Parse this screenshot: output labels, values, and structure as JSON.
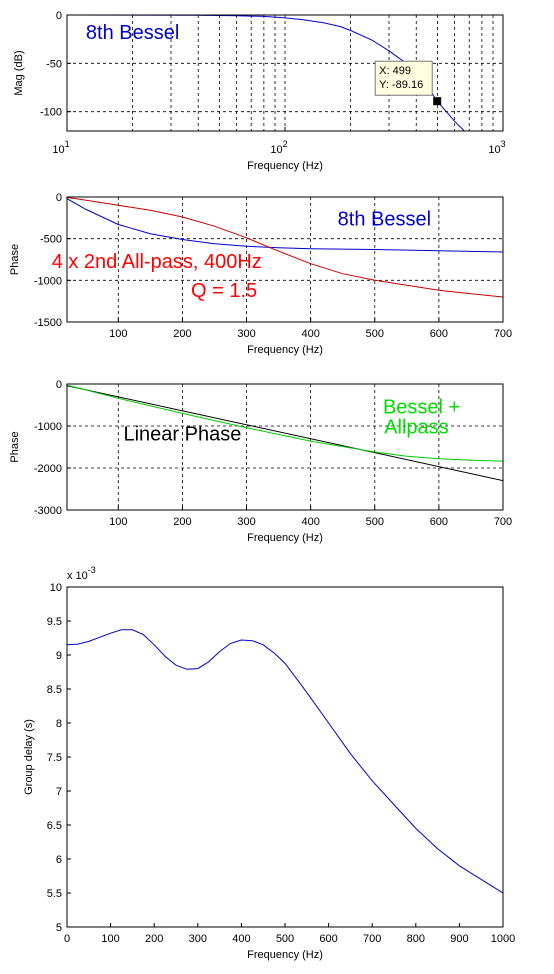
{
  "chart_data": [
    {
      "type": "line",
      "xscale": "log",
      "xlim": [
        10,
        1000
      ],
      "ylim": [
        -120,
        0
      ],
      "xlabel": "Frequency (Hz)",
      "ylabel": "Mag (dB)",
      "x_ticks": [
        10,
        100,
        1000
      ],
      "x_ticks_text": [
        {
          "base": "10",
          "exp": "1"
        },
        {
          "base": "10",
          "exp": "2"
        },
        {
          "base": "10",
          "exp": "3"
        }
      ],
      "y_ticks": [
        0,
        -50,
        -100
      ],
      "y_tick_labels": [
        "0",
        "-50",
        "-100"
      ],
      "grid": true,
      "series": [
        {
          "color": "#0000cc",
          "x": [
            10,
            20,
            40,
            60,
            80,
            100,
            120,
            150,
            180,
            200,
            250,
            300,
            350,
            400,
            450,
            499,
            550,
            600,
            700,
            800,
            1000
          ],
          "y": [
            0,
            -0.1,
            -0.3,
            -0.8,
            -1.5,
            -3,
            -4.8,
            -8,
            -12,
            -16,
            -26,
            -37,
            -48,
            -60,
            -74,
            -89.16,
            -100,
            -110,
            -125,
            -135,
            -150
          ]
        }
      ],
      "annotations": [
        {
          "text": "8th Bessel",
          "color": "#0000cc",
          "x": 20,
          "y": -25
        }
      ],
      "datatip": {
        "x": 499,
        "y": -89.16,
        "line1": "X: 499",
        "line2": "Y: -89.16"
      }
    },
    {
      "type": "line",
      "xlim": [
        20,
        700
      ],
      "ylim": [
        -1500,
        0
      ],
      "xlabel": "Frequency (Hz)",
      "ylabel": "Phase",
      "x_ticks": [
        100,
        200,
        300,
        400,
        500,
        600,
        700
      ],
      "y_ticks": [
        0,
        -500,
        -1000,
        -1500
      ],
      "y_tick_labels": [
        "0",
        "-500",
        "-1000",
        "-1500"
      ],
      "grid": true,
      "series": [
        {
          "name": "8th Bessel",
          "color": "#0000cc",
          "x": [
            20,
            50,
            100,
            150,
            200,
            250,
            300,
            350,
            400,
            500,
            600,
            700
          ],
          "y": [
            -20,
            -150,
            -330,
            -440,
            -510,
            -560,
            -590,
            -610,
            -620,
            -630,
            -645,
            -660
          ]
        },
        {
          "color": "#cc0000",
          "x": [
            20,
            50,
            100,
            150,
            200,
            250,
            300,
            350,
            400,
            450,
            500,
            550,
            600,
            650,
            700
          ],
          "y": [
            -5,
            -40,
            -100,
            -160,
            -240,
            -350,
            -490,
            -650,
            -800,
            -920,
            -1000,
            -1060,
            -1120,
            -1160,
            -1200
          ]
        }
      ],
      "annotations": [
        {
          "text": "8th Bessel",
          "color": "#0000cc",
          "x": 515,
          "y": -340
        },
        {
          "text": "4 x 2nd All-pass, 400Hz",
          "color": "#ff0000",
          "x": 160,
          "y": -850
        },
        {
          "text": "Q = 1.5",
          "color": "#ff0000",
          "x": 265,
          "y": -1200
        }
      ]
    },
    {
      "type": "line",
      "xlim": [
        20,
        700
      ],
      "ylim": [
        -3000,
        0
      ],
      "xlabel": "Frequency (Hz)",
      "ylabel": "Phase",
      "x_ticks": [
        100,
        200,
        300,
        400,
        500,
        600,
        700
      ],
      "y_ticks": [
        0,
        -1000,
        -2000,
        -3000
      ],
      "y_tick_labels": [
        "0",
        "-1000",
        "-2000",
        "-3000"
      ],
      "grid": true,
      "series": [
        {
          "name": "Linear Phase",
          "color": "#000000",
          "x": [
            20,
            700
          ],
          "y": [
            -40,
            -2300
          ]
        },
        {
          "name": "Bessel + Allpass",
          "color": "#00cc00",
          "x": [
            20,
            100,
            200,
            300,
            400,
            500,
            550,
            600,
            650,
            700
          ],
          "y": [
            -25,
            -340,
            -700,
            -1040,
            -1360,
            -1620,
            -1720,
            -1780,
            -1815,
            -1835
          ]
        }
      ],
      "annotations": [
        {
          "text": "Linear Phase",
          "color": "#000000",
          "x": 200,
          "y": -1350
        },
        {
          "text": "Bessel +",
          "color": "#00dd00",
          "x": 573,
          "y": -700
        },
        {
          "text": "Allpass",
          "color": "#00dd00",
          "x": 565,
          "y": -1180
        }
      ]
    },
    {
      "type": "line",
      "xlim": [
        0,
        1000
      ],
      "ylim": [
        5,
        10
      ],
      "xlabel": "Frequency (Hz)",
      "ylabel": "Group delay (s)",
      "y_multiplier": {
        "base": "x 10",
        "exp": "-3"
      },
      "x_ticks": [
        0,
        100,
        200,
        300,
        400,
        500,
        600,
        700,
        800,
        900,
        1000
      ],
      "y_ticks": [
        5,
        5.5,
        6,
        6.5,
        7,
        7.5,
        8,
        8.5,
        9,
        9.5,
        10
      ],
      "y_tick_labels": [
        "5",
        "5.5",
        "6",
        "6.5",
        "7",
        "7.5",
        "8",
        "8.5",
        "9",
        "9.5",
        "10"
      ],
      "grid": false,
      "series": [
        {
          "color": "#0000cc",
          "x": [
            0,
            25,
            50,
            75,
            100,
            125,
            150,
            175,
            200,
            225,
            250,
            275,
            300,
            325,
            350,
            375,
            400,
            425,
            450,
            475,
            500,
            550,
            600,
            650,
            700,
            750,
            800,
            850,
            900,
            950,
            1000
          ],
          "y": [
            9.15,
            9.16,
            9.2,
            9.26,
            9.32,
            9.37,
            9.37,
            9.3,
            9.15,
            8.98,
            8.85,
            8.79,
            8.8,
            8.9,
            9.05,
            9.17,
            9.22,
            9.21,
            9.15,
            9.03,
            8.88,
            8.45,
            8.0,
            7.55,
            7.15,
            6.8,
            6.45,
            6.15,
            5.9,
            5.7,
            5.5
          ]
        }
      ]
    }
  ]
}
